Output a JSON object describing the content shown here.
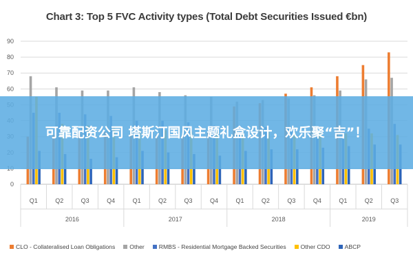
{
  "chart_data": {
    "type": "bar",
    "title": "Chart 3: Top 5 FVC Activity types (Total Debt Securities Issued €bn)",
    "xlabel": "",
    "ylabel": "",
    "ylim": [
      0,
      90
    ],
    "yticks": [
      "0",
      "10",
      "20",
      "30",
      "40",
      "50",
      "60",
      "70",
      "80",
      "90"
    ],
    "grid": true,
    "legend_position": "bottom",
    "categories": [
      "Q1",
      "Q2",
      "Q3",
      "Q4",
      "Q1",
      "Q2",
      "Q3",
      "Q4",
      "Q1",
      "Q2",
      "Q3",
      "Q4",
      "Q1",
      "Q2",
      "Q3"
    ],
    "year_groups": [
      {
        "label": "2016",
        "count": 4
      },
      {
        "label": "2017",
        "count": 4
      },
      {
        "label": "2018",
        "count": 4
      },
      {
        "label": "2019",
        "count": 3
      }
    ],
    "series": [
      {
        "name": "CLO - Collateralised Loan Obligations",
        "color": "#ED7D31",
        "values": [
          30,
          31,
          32,
          33,
          32,
          31,
          31,
          33,
          49,
          51,
          57,
          61,
          68,
          75,
          83
        ]
      },
      {
        "name": "Other",
        "color": "#A5A5A5",
        "values": [
          68,
          61,
          59,
          59,
          61,
          58,
          56,
          55,
          52,
          53,
          54,
          56,
          59,
          66,
          67
        ]
      },
      {
        "name": "RMBS - Residential Mortgage Backed Securities",
        "color": "#4472C4",
        "values": [
          45,
          45,
          44,
          43,
          40,
          40,
          39,
          37,
          37,
          36,
          36,
          36,
          35,
          35,
          38
        ]
      },
      {
        "name": "Other CDO",
        "color": "#FFC000",
        "values": [
          55,
          38,
          37,
          36,
          34,
          34,
          33,
          33,
          33,
          33,
          33,
          33,
          32,
          32,
          31
        ]
      },
      {
        "name": "ABCP",
        "color": "#2E64B8",
        "values": [
          21,
          19,
          16,
          17,
          21,
          20,
          19,
          18,
          21,
          22,
          22,
          23,
          24,
          25,
          25
        ]
      }
    ]
  },
  "overlay": {
    "text": "可靠配资公司 塔斯汀国风主题礼盒设计，欢乐聚“吉”！"
  }
}
